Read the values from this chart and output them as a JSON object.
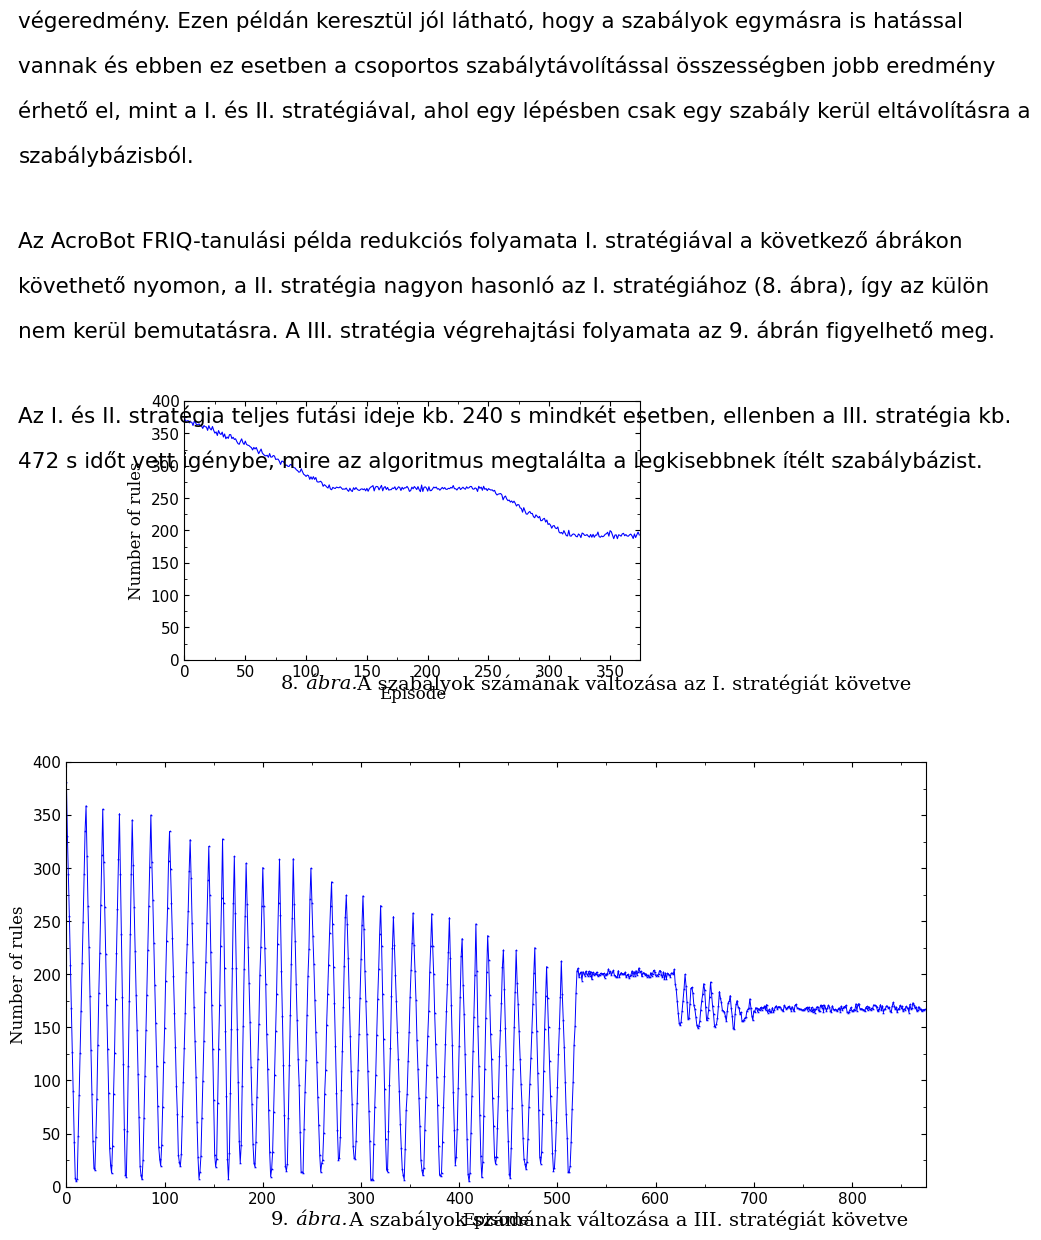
{
  "chart1": {
    "xlabel": "Episode",
    "ylabel": "Number of rules",
    "xlim": [
      0,
      375
    ],
    "ylim": [
      0,
      400
    ],
    "xticks": [
      0,
      50,
      100,
      150,
      200,
      250,
      300,
      350
    ],
    "yticks": [
      0,
      50,
      100,
      150,
      200,
      250,
      300,
      350,
      400
    ],
    "line_color": "#0000ff",
    "start_val": 370,
    "plateau1_val": 265,
    "plateau1_start_ep": 120,
    "plateau1_end_ep": 250,
    "end_val": 193,
    "drop2_end_ep": 315
  },
  "chart2": {
    "xlabel": "Episode",
    "ylabel": "Number of rules",
    "xlim": [
      0,
      875
    ],
    "ylim": [
      0,
      400
    ],
    "xticks": [
      0,
      100,
      200,
      300,
      400,
      500,
      600,
      700,
      800
    ],
    "yticks": [
      0,
      50,
      100,
      150,
      200,
      250,
      300,
      350,
      400
    ],
    "line_color": "#0000ff",
    "phase1_end": 520,
    "phase2_end": 530,
    "phase3_end": 700,
    "phase2_val": 200,
    "phase4_val": 168
  },
  "caption1_num": "8.",
  "caption1_italic": " ábra.",
  "caption1_rest": " A szabályok számának változása az I. stratégiát követve",
  "caption2_num": "9.",
  "caption2_italic": " ábra.",
  "caption2_rest": " A szabályok számának változása a III. stratégiát követve",
  "para1_line1": "végeredmény. Ezen példán keresztül jól látható, hogy a szabályok egymásra is hatással",
  "para1_line2": "vannak és ebben ez esetben a csoportos szabálytávolítással összességben jobb eredmény",
  "para1_line3": "érhető el, mint a I. és II. stratégiával, ahol egy lépésben csak egy szabály kerül eltávolításra a",
  "para1_line4": "szabálybázisból.",
  "para2_line1": "Az AcroBot FRIQ-tanulási példa redukciós folyamata I. stratégiával a következő ábrákon",
  "para2_line2": "követhető nyomon, a II. stratégia nagyon hasonló az I. stratégiához (8. ábra), így az külön",
  "para2_line3": "nem kerül bemutatásra. A III. stratégia végrehajtási folyamata az 9. ábrán figyelhető meg.",
  "para3_line1": "Az I. és II. stratégia teljes futási ideje kb. 240 s mindkét esetben, ellenben a III. stratégia kb.",
  "para3_line2": "472 s időt vett igénybe, mire az algoritmus megtalálta a legkisebbnek ítélt szabálybázist.",
  "bg_color": "#ffffff",
  "text_color": "#000000",
  "font_size_text": 15.5,
  "font_size_axis_label": 12,
  "font_size_tick": 11,
  "font_size_caption": 14
}
